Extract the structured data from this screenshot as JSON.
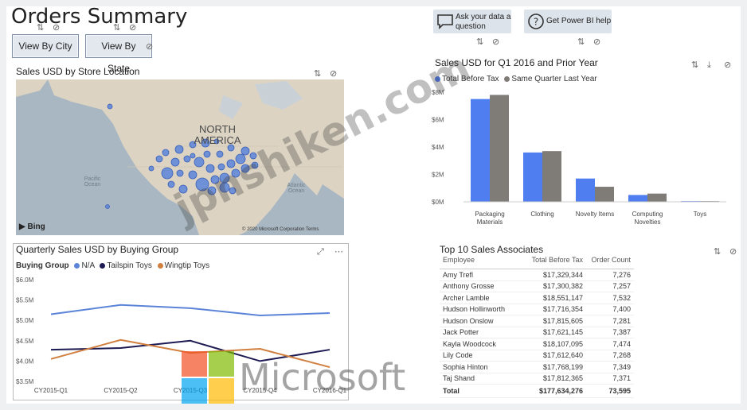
{
  "header": {
    "title": "Orders Summary"
  },
  "slicers": {
    "city": "View By City",
    "state": "View By State"
  },
  "qa": {
    "ask": "Ask your data a question",
    "help": "Get Power BI help"
  },
  "map": {
    "title": "Sales USD by Store Location",
    "label_continent": "NORTH AMERICA",
    "label_pacific": "Pacific Ocean",
    "label_atlantic": "Atlantic Ocean",
    "bing": "Bing",
    "copyright": "© 2020 Microsoft Corporation Terms"
  },
  "bar_chart": {
    "title": "Sales USD for Q1 2016 and Prior Year",
    "legend": [
      "Total Before Tax",
      "Same Quarter Last Year"
    ],
    "colors": {
      "total": "#4f7ef0",
      "last_year": "#7f7b76"
    }
  },
  "line_chart": {
    "title": "Quarterly Sales USD by Buying Group",
    "legend_label": "Buying Group",
    "legend": [
      "N/A",
      "Tailspin Toys",
      "Wingtip Toys"
    ],
    "colors": {
      "na": "#5b84d9",
      "tailspin": "#1c1a52",
      "wingtip": "#d17f3f"
    }
  },
  "table": {
    "title": "Top 10 Sales Associates",
    "headers": [
      "Employee",
      "Total Before Tax",
      "Order Count"
    ],
    "rows": [
      [
        "Amy Trefl",
        "$17,329,344",
        "7,276"
      ],
      [
        "Anthony Grosse",
        "$17,300,382",
        "7,257"
      ],
      [
        "Archer Lamble",
        "$18,551,147",
        "7,532"
      ],
      [
        "Hudson Hollinworth",
        "$17,716,354",
        "7,400"
      ],
      [
        "Hudson Onslow",
        "$17,815,605",
        "7,281"
      ],
      [
        "Jack Potter",
        "$17,621,145",
        "7,387"
      ],
      [
        "Kayla Woodcock",
        "$18,107,095",
        "7,474"
      ],
      [
        "Lily Code",
        "$17,612,640",
        "7,268"
      ],
      [
        "Sophia Hinton",
        "$17,768,199",
        "7,349"
      ],
      [
        "Taj Shand",
        "$17,812,365",
        "7,371"
      ]
    ],
    "total": [
      "Total",
      "$177,634,276",
      "73,595"
    ]
  },
  "watermarks": {
    "site": "jpnshiken.com",
    "brand": "Microsoft"
  },
  "chart_data": [
    {
      "type": "bar",
      "title": "Sales USD for Q1 2016 and Prior Year",
      "categories": [
        "Packaging Materials",
        "Clothing",
        "Novelty Items",
        "Computing Novelties",
        "Toys"
      ],
      "series": [
        {
          "name": "Total Before Tax",
          "values": [
            7.5,
            3.6,
            1.7,
            0.5,
            0.05
          ]
        },
        {
          "name": "Same Quarter Last Year",
          "values": [
            7.8,
            3.7,
            1.1,
            0.6,
            0.05
          ]
        }
      ],
      "yticks": [
        "$0M",
        "$2M",
        "$4M",
        "$6M",
        "$8M"
      ],
      "ylim": [
        0,
        8
      ],
      "legend_position": "top-left"
    },
    {
      "type": "line",
      "title": "Quarterly Sales USD by Buying Group",
      "x": [
        "CY2015-Q1",
        "CY2015-Q2",
        "CY2015-Q3",
        "CY2015-Q4",
        "CY2016-Q1"
      ],
      "series": [
        {
          "name": "N/A",
          "values": [
            5.15,
            5.38,
            5.3,
            5.12,
            5.18
          ]
        },
        {
          "name": "Tailspin Toys",
          "values": [
            4.28,
            4.32,
            4.5,
            4.0,
            4.28
          ]
        },
        {
          "name": "Wingtip Toys",
          "values": [
            4.05,
            4.52,
            4.2,
            4.3,
            3.85
          ]
        }
      ],
      "yticks": [
        "$3.5M",
        "$4.0M",
        "$4.5M",
        "$5.0M",
        "$5.5M",
        "$6.0M"
      ],
      "ylim": [
        3.5,
        6.0
      ],
      "legend_position": "top-left"
    }
  ]
}
